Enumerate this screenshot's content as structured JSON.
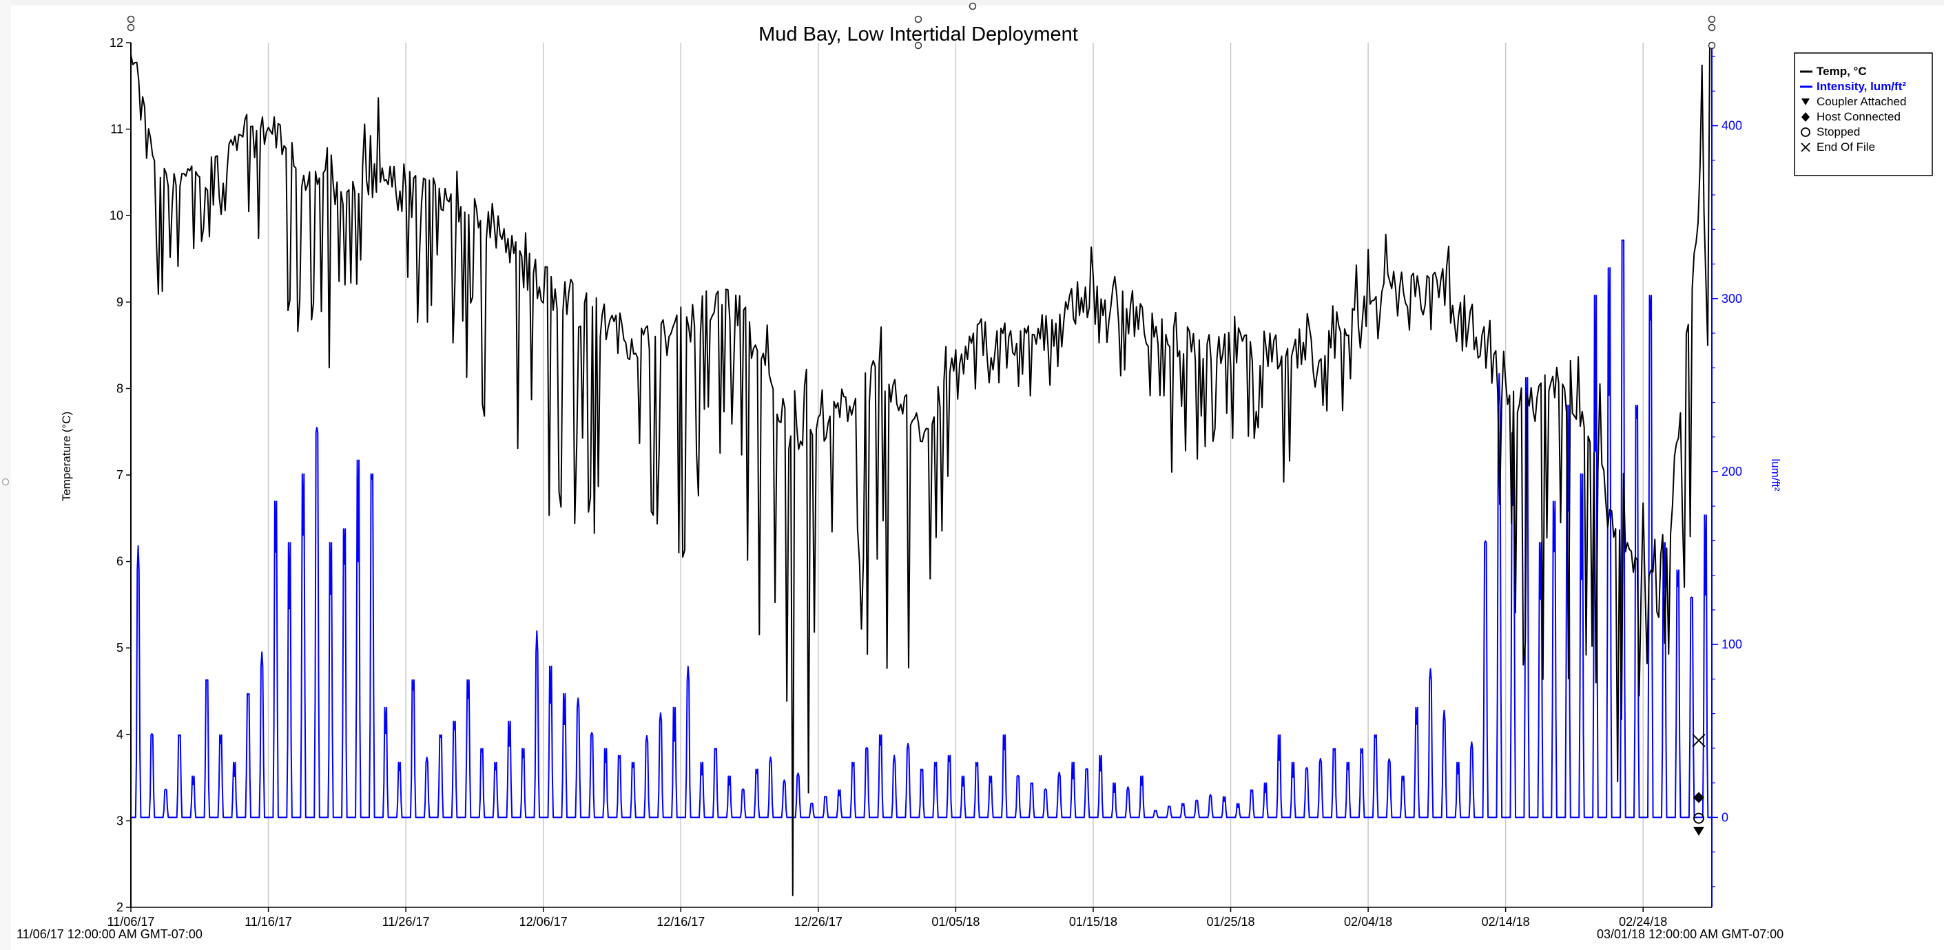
{
  "colors": {
    "temperature": "#000000",
    "intensity": "#0000ff",
    "grid": "#c8c8c8",
    "axis": "#000000"
  },
  "icons": {
    "coupler_attached": "triangle-down-icon",
    "host_connected": "diamond-icon",
    "stopped": "circle-icon",
    "end_of_file": "x-cross-icon"
  },
  "chart_data": {
    "type": "line",
    "title": "Mud Bay, Low Intertidal Deployment",
    "ylabel": "Temperature (°C)",
    "y2label": "lum/ft²",
    "ylim": [
      2,
      12
    ],
    "y2lim": [
      -52,
      448
    ],
    "yticks": [
      2,
      3,
      4,
      5,
      6,
      7,
      8,
      9,
      10,
      11,
      12
    ],
    "y2ticks": [
      0,
      100,
      200,
      300,
      400
    ],
    "xlim": [
      "2017-11-06",
      "2018-03-01"
    ],
    "xticks": [
      "11/06/17",
      "11/16/17",
      "11/26/17",
      "12/06/17",
      "12/16/17",
      "12/26/17",
      "01/05/18",
      "01/15/18",
      "01/25/18",
      "02/04/18",
      "02/14/18",
      "02/24/18"
    ],
    "start_label": "11/06/17 12:00:00 AM GMT-07:00",
    "end_label": "03/01/18 12:00:00 AM GMT-07:00",
    "grid": true,
    "legend_position": "top-right",
    "legend": [
      {
        "label": "Temp, °C",
        "marker": "line",
        "color": "#000000"
      },
      {
        "label": "Intensity, lum/ft²",
        "marker": "line",
        "color": "#0000ff"
      },
      {
        "label": "Coupler Attached",
        "marker": "triangle-down"
      },
      {
        "label": "Host Connected",
        "marker": "diamond"
      },
      {
        "label": "Stopped",
        "marker": "circle"
      },
      {
        "label": "End Of File",
        "marker": "x"
      }
    ],
    "series": [
      {
        "name": "Temp, °C",
        "axis": "left",
        "x": [
          "2017-11-06",
          "2017-11-08",
          "2017-11-10",
          "2017-11-12",
          "2017-11-14",
          "2017-11-16",
          "2017-11-18",
          "2017-11-20",
          "2017-11-22",
          "2017-11-24",
          "2017-11-26",
          "2017-11-28",
          "2017-11-30",
          "2017-12-02",
          "2017-12-04",
          "2017-12-06",
          "2017-12-08",
          "2017-12-10",
          "2017-12-12",
          "2017-12-14",
          "2017-12-16",
          "2017-12-18",
          "2017-12-20",
          "2017-12-22",
          "2017-12-24",
          "2017-12-26",
          "2017-12-28",
          "2017-12-30",
          "2018-01-01",
          "2018-01-03",
          "2018-01-05",
          "2018-01-07",
          "2018-01-09",
          "2018-01-11",
          "2018-01-13",
          "2018-01-15",
          "2018-01-17",
          "2018-01-19",
          "2018-01-21",
          "2018-01-23",
          "2018-01-25",
          "2018-01-27",
          "2018-01-29",
          "2018-01-31",
          "2018-02-02",
          "2018-02-04",
          "2018-02-06",
          "2018-02-08",
          "2018-02-10",
          "2018-02-12",
          "2018-02-14",
          "2018-02-16",
          "2018-02-18",
          "2018-02-20",
          "2018-02-22",
          "2018-02-24",
          "2018-02-26",
          "2018-02-28"
        ],
        "y": [
          12.0,
          10.2,
          10.4,
          10.5,
          10.8,
          11.0,
          10.6,
          10.3,
          10.2,
          10.5,
          10.2,
          10.3,
          10.1,
          9.9,
          9.5,
          9.2,
          9.0,
          8.8,
          8.6,
          8.5,
          8.7,
          8.9,
          9.0,
          8.2,
          7.5,
          7.6,
          7.8,
          8.1,
          7.8,
          7.5,
          8.3,
          8.6,
          8.6,
          8.5,
          8.9,
          9.1,
          8.9,
          8.7,
          8.6,
          8.5,
          8.5,
          8.4,
          8.5,
          8.4,
          8.6,
          8.9,
          9.2,
          9.1,
          9.2,
          8.6,
          8.0,
          7.8,
          8.1,
          7.5,
          6.3,
          5.8,
          6.5,
          10.0
        ],
        "min": [
          12.0,
          9.0,
          9.5,
          9.8,
          9.3,
          9.0,
          8.5,
          8.0,
          8.5,
          8.8,
          8.5,
          8.7,
          8.2,
          7.5,
          6.5,
          5.5,
          6.5,
          6.0,
          6.2,
          6.5,
          6.0,
          6.5,
          7.5,
          3.5,
          2.0,
          3.0,
          6.0,
          4.5,
          4.0,
          5.0,
          7.5,
          7.8,
          7.8,
          7.6,
          8.5,
          8.5,
          8.0,
          6.8,
          7.0,
          7.2,
          7.3,
          7.2,
          5.3,
          7.5,
          7.5,
          8.5,
          8.5,
          8.5,
          8.5,
          7.5,
          4.5,
          3.8,
          5.5,
          2.0,
          2.7,
          4.5,
          4.5,
          6.5
        ],
        "max": [
          12.0,
          10.5,
          10.8,
          10.9,
          11.2,
          11.3,
          11.0,
          10.8,
          10.7,
          11.9,
          10.7,
          10.6,
          10.5,
          10.3,
          10.0,
          9.8,
          9.6,
          9.3,
          9.2,
          9.0,
          9.1,
          9.3,
          9.5,
          9.1,
          8.6,
          8.0,
          8.2,
          9.0,
          8.4,
          8.3,
          8.6,
          8.9,
          8.9,
          8.8,
          9.4,
          9.7,
          9.3,
          9.1,
          9.0,
          8.9,
          8.9,
          8.7,
          8.8,
          8.9,
          9.1,
          10.4,
          10.3,
          10.2,
          10.2,
          9.1,
          8.6,
          8.5,
          9.0,
          9.2,
          7.0,
          7.1,
          7.1,
          12.0
        ]
      },
      {
        "name": "Intensity, lum/ft²",
        "axis": "right",
        "x": [
          "2017-11-06",
          "2017-11-07",
          "2017-11-08",
          "2017-11-09",
          "2017-11-10",
          "2017-11-11",
          "2017-11-12",
          "2017-11-13",
          "2017-11-14",
          "2017-11-15",
          "2017-11-16",
          "2017-11-17",
          "2017-11-18",
          "2017-11-19",
          "2017-11-20",
          "2017-11-21",
          "2017-11-22",
          "2017-11-23",
          "2017-11-24",
          "2017-11-25",
          "2017-11-26",
          "2017-11-27",
          "2017-11-28",
          "2017-11-29",
          "2017-11-30",
          "2017-12-01",
          "2017-12-02",
          "2017-12-03",
          "2017-12-04",
          "2017-12-05",
          "2017-12-06",
          "2017-12-07",
          "2017-12-08",
          "2017-12-09",
          "2017-12-10",
          "2017-12-11",
          "2017-12-12",
          "2017-12-13",
          "2017-12-14",
          "2017-12-15",
          "2017-12-16",
          "2017-12-17",
          "2017-12-18",
          "2017-12-19",
          "2017-12-20",
          "2017-12-21",
          "2017-12-22",
          "2017-12-23",
          "2017-12-24",
          "2017-12-25",
          "2017-12-26",
          "2017-12-27",
          "2017-12-28",
          "2017-12-29",
          "2017-12-30",
          "2017-12-31",
          "2018-01-01",
          "2018-01-02",
          "2018-01-03",
          "2018-01-04",
          "2018-01-05",
          "2018-01-06",
          "2018-01-07",
          "2018-01-08",
          "2018-01-09",
          "2018-01-10",
          "2018-01-11",
          "2018-01-12",
          "2018-01-13",
          "2018-01-14",
          "2018-01-15",
          "2018-01-16",
          "2018-01-17",
          "2018-01-18",
          "2018-01-19",
          "2018-01-20",
          "2018-01-21",
          "2018-01-22",
          "2018-01-23",
          "2018-01-24",
          "2018-01-25",
          "2018-01-26",
          "2018-01-27",
          "2018-01-28",
          "2018-01-29",
          "2018-01-30",
          "2018-01-31",
          "2018-02-01",
          "2018-02-02",
          "2018-02-03",
          "2018-02-04",
          "2018-02-05",
          "2018-02-06",
          "2018-02-07",
          "2018-02-08",
          "2018-02-09",
          "2018-02-10",
          "2018-02-11",
          "2018-02-12",
          "2018-02-13",
          "2018-02-14",
          "2018-02-15",
          "2018-02-16",
          "2018-02-17",
          "2018-02-18",
          "2018-02-19",
          "2018-02-20",
          "2018-02-21",
          "2018-02-22",
          "2018-02-23",
          "2018-02-24",
          "2018-02-25",
          "2018-02-26",
          "2018-02-27",
          "2018-02-28"
        ],
        "peak": [
          180,
          60,
          20,
          60,
          30,
          100,
          60,
          40,
          90,
          110,
          230,
          200,
          250,
          280,
          200,
          210,
          260,
          250,
          80,
          40,
          100,
          40,
          60,
          70,
          100,
          50,
          40,
          70,
          50,
          120,
          110,
          90,
          80,
          60,
          50,
          45,
          40,
          55,
          70,
          80,
          100,
          40,
          50,
          30,
          20,
          35,
          40,
          25,
          30,
          10,
          15,
          20,
          40,
          50,
          60,
          40,
          50,
          35,
          40,
          45,
          30,
          40,
          30,
          60,
          30,
          25,
          20,
          30,
          40,
          35,
          45,
          25,
          20,
          30,
          5,
          8,
          10,
          12,
          15,
          15,
          10,
          20,
          25,
          60,
          40,
          35,
          40,
          50,
          40,
          50,
          60,
          40,
          30,
          80,
          100,
          70,
          40,
          50,
          200,
          300,
          280,
          320,
          200,
          230,
          300,
          250,
          380,
          400,
          420,
          300,
          380,
          200,
          180,
          160,
          220
        ]
      }
    ],
    "events": [
      {
        "name": "End Of File",
        "marker": "x",
        "x": "2018-02-28",
        "y": 3.93
      },
      {
        "name": "Host Connected",
        "marker": "diamond",
        "x": "2018-02-28",
        "y": 3.27
      },
      {
        "name": "Stopped",
        "marker": "circle",
        "x": "2018-02-28",
        "y": 3.03
      },
      {
        "name": "Coupler Attached",
        "marker": "triangle-down",
        "x": "2018-02-28",
        "y": 2.9
      }
    ]
  }
}
